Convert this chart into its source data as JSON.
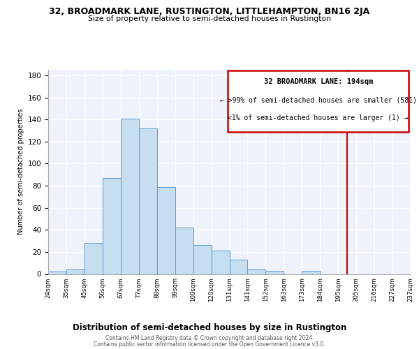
{
  "title": "32, BROADMARK LANE, RUSTINGTON, LITTLEHAMPTON, BN16 2JA",
  "subtitle": "Size of property relative to semi-detached houses in Rustington",
  "xlabel": "Distribution of semi-detached houses by size in Rustington",
  "ylabel": "Number of semi-detached properties",
  "footer_line1": "Contains HM Land Registry data © Crown copyright and database right 2024.",
  "footer_line2": "Contains public sector information licensed under the Open Government Licence v3.0.",
  "bin_labels": [
    "24sqm",
    "35sqm",
    "45sqm",
    "56sqm",
    "67sqm",
    "77sqm",
    "88sqm",
    "99sqm",
    "109sqm",
    "120sqm",
    "131sqm",
    "141sqm",
    "152sqm",
    "163sqm",
    "173sqm",
    "184sqm",
    "195sqm",
    "205sqm",
    "216sqm",
    "227sqm",
    "237sqm"
  ],
  "bar_values": [
    2,
    4,
    28,
    87,
    141,
    132,
    79,
    42,
    26,
    21,
    13,
    4,
    3,
    0,
    3,
    0,
    0,
    0,
    0,
    0
  ],
  "bar_color": "#c5dff0",
  "bar_edge_color": "#5b9bd5",
  "vline_x_index": 16,
  "vline_color": "#cc0000",
  "annotation_title": "32 BROADMARK LANE: 194sqm",
  "annotation_line1": "← >99% of semi-detached houses are smaller (581)",
  "annotation_line2": "<1% of semi-detached houses are larger (1) →",
  "annotation_box_color": "#cc0000",
  "ylim": [
    0,
    185
  ],
  "yticks": [
    0,
    20,
    40,
    60,
    80,
    100,
    120,
    140,
    160,
    180
  ],
  "background_color": "#ffffff",
  "plot_bg_color": "#eef2fa"
}
